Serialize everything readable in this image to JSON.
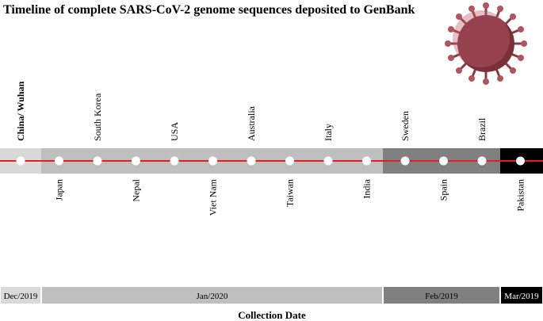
{
  "header": {
    "title": "Timeline of complete SARS-CoV-2 genome sequences deposited to GenBank"
  },
  "nodes": [
    {
      "label": "China/ Wuhan"
    },
    {
      "label": "Japan"
    },
    {
      "label": "South Korea"
    },
    {
      "label": "Nepal"
    },
    {
      "label": "USA"
    },
    {
      "label": "Viet Nam"
    },
    {
      "label": "Australia"
    },
    {
      "label": "Taiwan"
    },
    {
      "label": "Italy"
    },
    {
      "label": "India"
    },
    {
      "label": "Sweden"
    },
    {
      "label": "Spain"
    },
    {
      "label": "Brazil"
    },
    {
      "label": "Pakistan"
    }
  ],
  "periods": [
    {
      "label": "Dec/2019",
      "color": "#d9d9d9"
    },
    {
      "label": "Jan/2020",
      "color": "#bfbfbf"
    },
    {
      "label": "Feb/2019",
      "color": "#808080"
    },
    {
      "label": "Mar/2019",
      "color": "#000000"
    }
  ],
  "axis_label": "Collection Date"
}
